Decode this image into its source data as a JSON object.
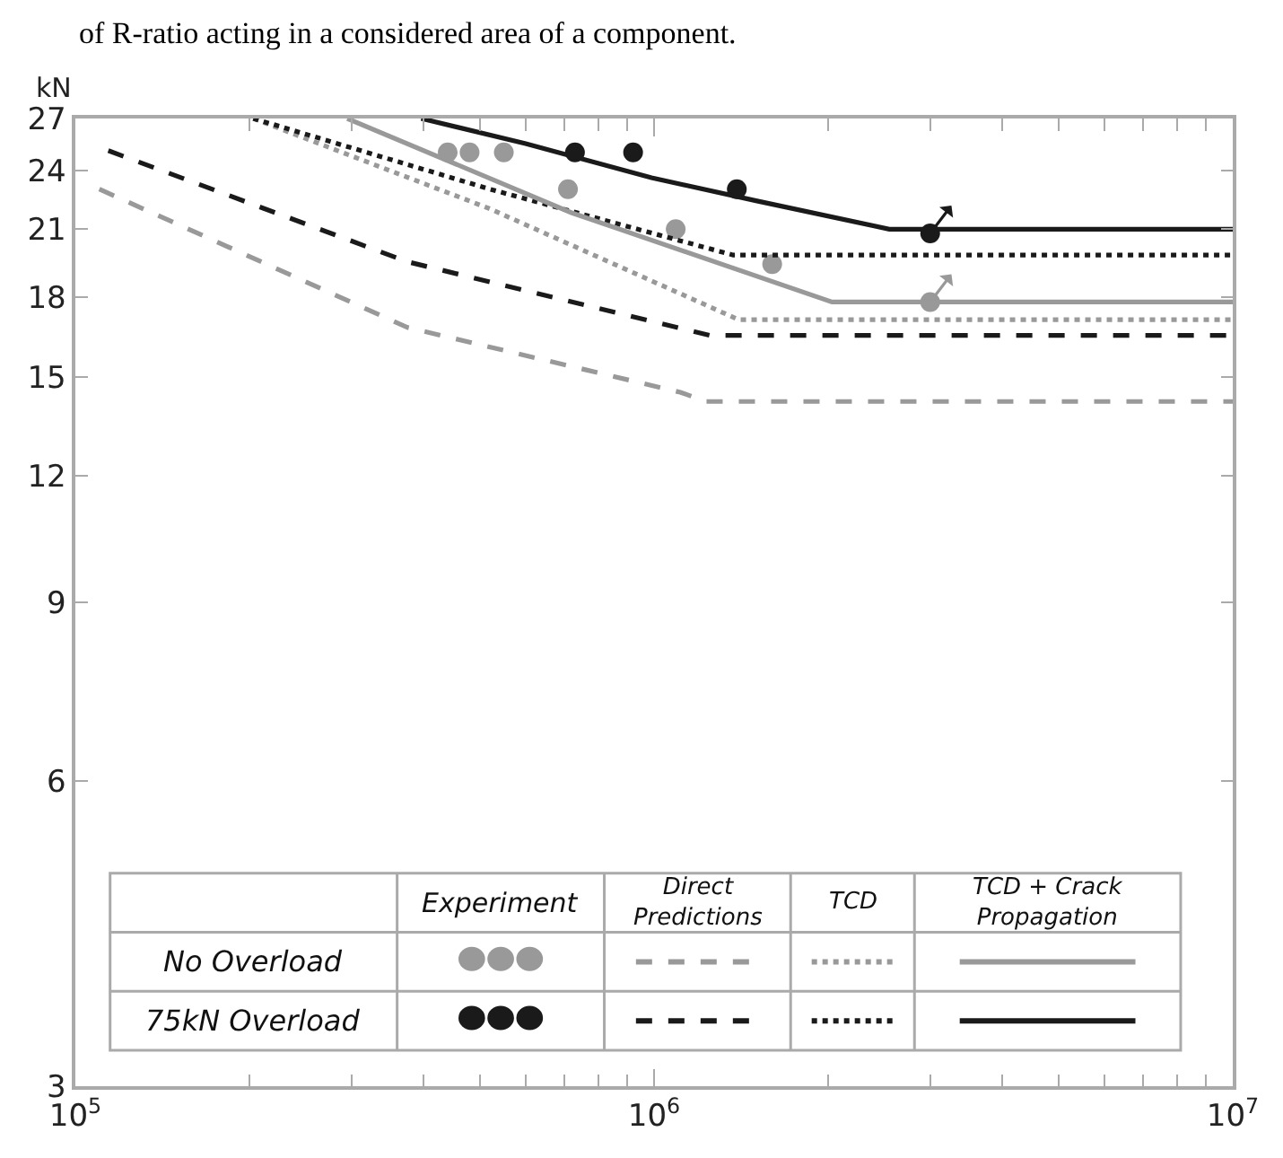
{
  "chart_data": {
    "type": "line",
    "annotations": [
      "of R-ratio acting in a considered area of a component.",
      "Experiment",
      "Direct Predictions",
      "TCD",
      "TCD + Crack Propagation",
      "No Overload",
      "75kN Overload"
    ],
    "ylabel": "kN",
    "log": "xy",
    "xlim": [
      100000,
      10000000
    ],
    "xticks": [
      {
        "value": 100000,
        "label": "10$^{5}$"
      },
      {
        "value": 1000000,
        "label": "10$^{6}$"
      },
      {
        "value": 10000000,
        "label": "10$^{7}$"
      }
    ],
    "ylim": [
      3,
      27
    ],
    "yticks": [
      3,
      6,
      9,
      12,
      15,
      18,
      21,
      24,
      27
    ],
    "series": [
      {
        "type": "scatter",
        "marker": "circle",
        "color": "#999999",
        "x": [
          440000,
          480000,
          550000,
          710000,
          1090000,
          1600000,
          3000000
        ],
        "values": [
          25,
          25,
          25,
          23,
          21,
          19.4,
          17.8
        ]
      },
      {
        "type": "scatter",
        "marker": "circle",
        "color": "#1a1a1a",
        "x": [
          730000,
          920000,
          1390000,
          3000000
        ],
        "values": [
          25,
          25,
          23,
          20.8
        ]
      },
      {
        "line_style": "dashed",
        "color": "#999999",
        "x": [
          110000,
          375000,
          1110000,
          1230000,
          10000000
        ],
        "values": [
          23,
          16.8,
          14.5,
          14.2,
          14.2
        ]
      },
      {
        "line_style": "dashed",
        "color": "#1a1a1a",
        "x": [
          114000,
          375000,
          1250000,
          10000000
        ],
        "values": [
          25.1,
          19.5,
          16.5,
          16.5
        ]
      },
      {
        "line_style": "dotted",
        "color": "#999999",
        "x": [
          203000,
          520000,
          1400000,
          10000000
        ],
        "values": [
          27,
          22,
          17.1,
          17.1
        ]
      },
      {
        "line_style": "dotted",
        "color": "#1a1a1a",
        "x": [
          203000,
          520000,
          1370000,
          10000000
        ],
        "values": [
          27,
          23,
          19.8,
          19.8
        ]
      },
      {
        "line_style": "solid",
        "color": "#999999",
        "x": [
          295000,
          720000,
          2030000,
          10000000
        ],
        "values": [
          27,
          21.8,
          17.8,
          17.8
        ]
      },
      {
        "line_style": "solid",
        "color": "#1a1a1a",
        "x": [
          396000,
          600000,
          990000,
          1500000,
          2550000,
          10000000
        ],
        "values": [
          27,
          25.5,
          23.6,
          22.4,
          21,
          21
        ]
      }
    ]
  }
}
